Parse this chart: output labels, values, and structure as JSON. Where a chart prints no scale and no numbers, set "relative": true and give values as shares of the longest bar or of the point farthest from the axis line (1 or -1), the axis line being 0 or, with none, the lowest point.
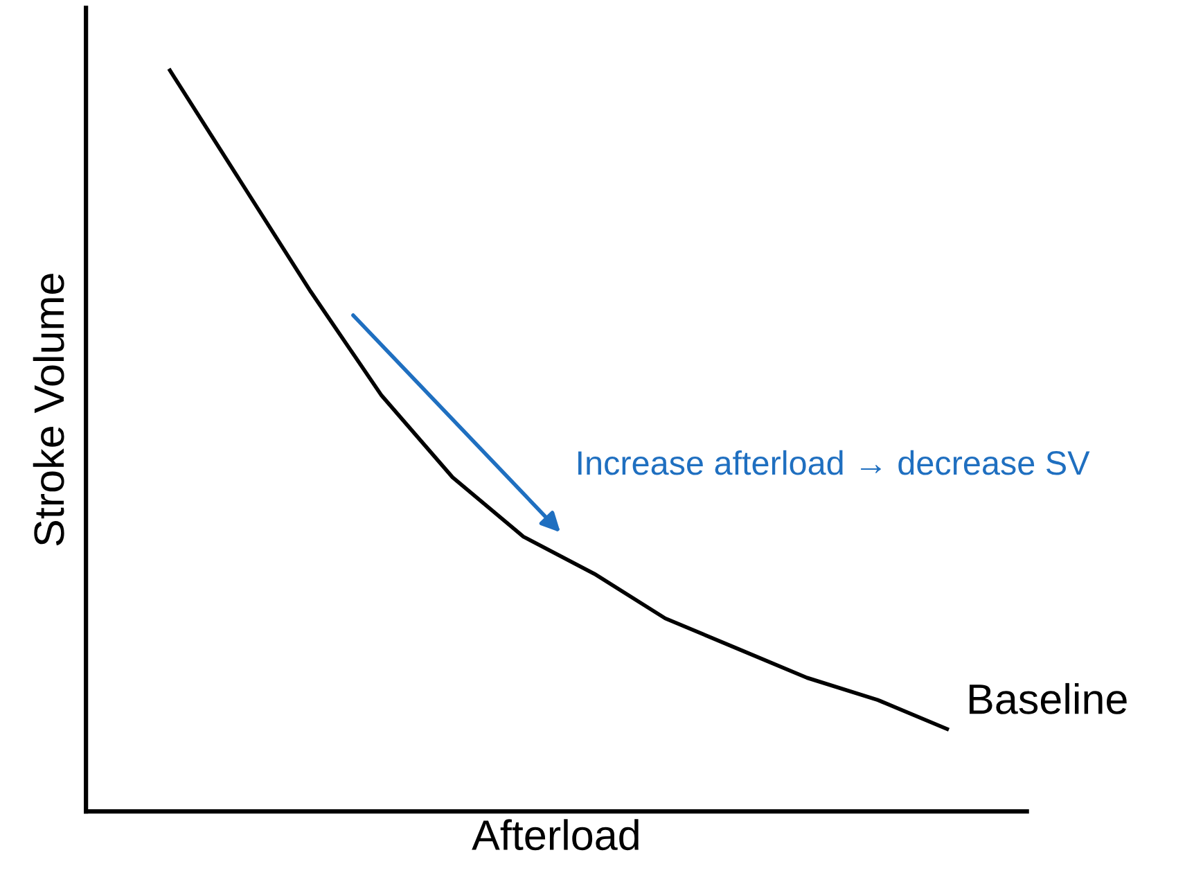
{
  "chart_data": {
    "type": "line",
    "relative": true,
    "xlabel": "Afterload",
    "ylabel": "Stroke Volume",
    "categories": [
      null,
      null,
      null,
      null,
      null,
      null,
      null,
      null,
      null,
      null,
      null,
      null
    ],
    "series": [
      {
        "name": "Baseline",
        "color": "#000000",
        "values": [
          1.0,
          0.85,
          0.7,
          0.56,
          0.45,
          0.37,
          0.32,
          0.26,
          0.22,
          0.18,
          0.15,
          0.11
        ]
      }
    ],
    "annotations": [
      "Increase afterload → decrease SV"
    ],
    "marker": "none",
    "line_style": "solid"
  }
}
